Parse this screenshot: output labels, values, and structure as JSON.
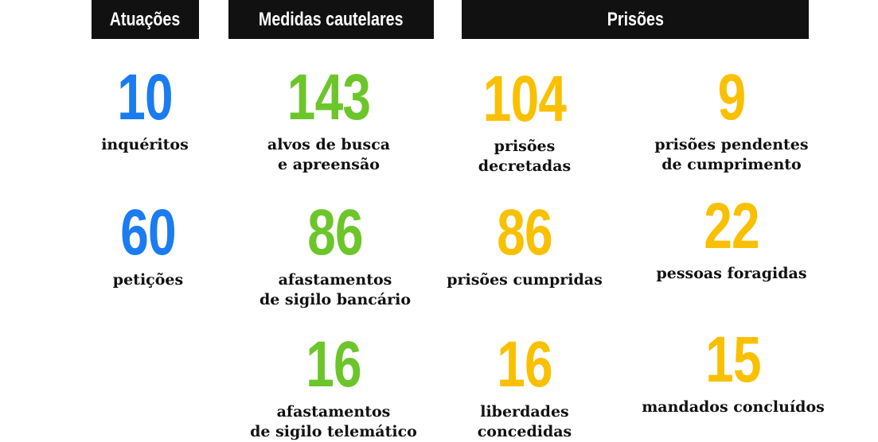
{
  "headers": {
    "atuacoes": "Atuações",
    "medidas": "Medidas cautelares",
    "prisoes": "Prisões"
  },
  "colors": {
    "atuacoes": "#1a7cf0",
    "medidas": "#6cc62b",
    "prisoes": "#f9c000",
    "header_bg": "#111111"
  },
  "atuacoes": [
    {
      "value": "10",
      "label": "inquéritos"
    },
    {
      "value": "60",
      "label": "petições"
    }
  ],
  "medidas": [
    {
      "value": "143",
      "label": "alvos de busca\ne apreensão"
    },
    {
      "value": "86",
      "label": "afastamentos\nde sigilo bancário"
    },
    {
      "value": "16",
      "label": "afastamentos\nde sigilo telemático"
    }
  ],
  "prisoes_left": [
    {
      "value": "104",
      "label": "prisões\ndecretadas"
    },
    {
      "value": "86",
      "label": "prisões cumpridas"
    },
    {
      "value": "16",
      "label": "liberdades\nconcedidas"
    }
  ],
  "prisoes_right": [
    {
      "value": "9",
      "label": "prisões pendentes\nde cumprimento"
    },
    {
      "value": "22",
      "label": "pessoas foragidas"
    },
    {
      "value": "15",
      "label": "mandados concluídos"
    }
  ]
}
